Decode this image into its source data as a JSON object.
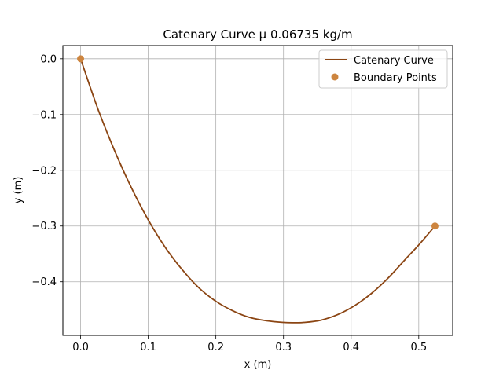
{
  "chart_data": {
    "type": "line",
    "title": "Catenary Curve μ 0.06735 kg/m",
    "xlabel": "x (m)",
    "ylabel": "y (m)",
    "xlim": [
      -0.0262,
      0.5502
    ],
    "ylim": [
      -0.4962,
      0.0237
    ],
    "xticks": [
      0.0,
      0.1,
      0.2,
      0.3,
      0.4,
      0.5
    ],
    "xtick_labels": [
      "0.0",
      "0.1",
      "0.2",
      "0.3",
      "0.4",
      "0.5"
    ],
    "yticks": [
      0.0,
      -0.1,
      -0.2,
      -0.3,
      -0.4
    ],
    "ytick_labels": [
      "0.0",
      "−0.1",
      "−0.2",
      "−0.3",
      "−0.4"
    ],
    "grid": true,
    "legend_position": "top-right",
    "series": [
      {
        "name": "Catenary Curve",
        "kind": "line",
        "color": "#8B4513",
        "x": [
          0.0,
          0.025,
          0.05,
          0.075,
          0.1,
          0.125,
          0.15,
          0.175,
          0.2,
          0.225,
          0.25,
          0.275,
          0.3,
          0.315,
          0.33,
          0.355,
          0.38,
          0.405,
          0.43,
          0.455,
          0.48,
          0.5,
          0.524
        ],
        "y": [
          0.0,
          -0.088,
          -0.164,
          -0.231,
          -0.289,
          -0.338,
          -0.378,
          -0.411,
          -0.435,
          -0.452,
          -0.464,
          -0.47,
          -0.473,
          -0.4735,
          -0.473,
          -0.469,
          -0.459,
          -0.443,
          -0.421,
          -0.393,
          -0.36,
          -0.334,
          -0.3
        ]
      },
      {
        "name": "Boundary Points",
        "kind": "scatter",
        "color": "#CD853F",
        "x": [
          0.0,
          0.524
        ],
        "y": [
          0.0,
          -0.3
        ]
      }
    ]
  }
}
